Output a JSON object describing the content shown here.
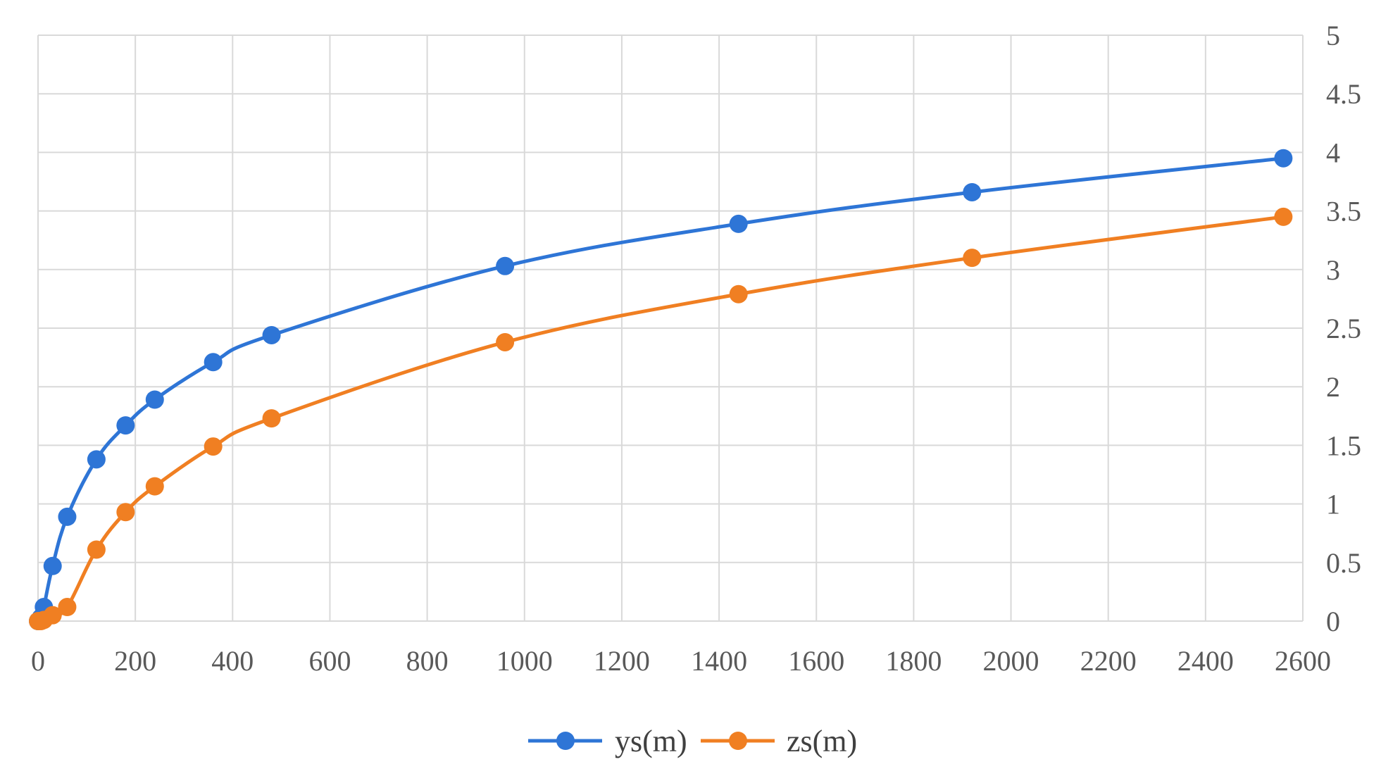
{
  "chart_data": {
    "type": "line",
    "title": "",
    "xlabel": "",
    "ylabel": "",
    "xlim": [
      0,
      2600
    ],
    "ylim": [
      0,
      5
    ],
    "x_ticks": [
      0,
      200,
      400,
      600,
      800,
      1000,
      1200,
      1400,
      1600,
      1800,
      2000,
      2200,
      2400,
      2600
    ],
    "y_ticks": [
      0,
      0.5,
      1,
      1.5,
      2,
      2.5,
      3,
      3.5,
      4,
      4.5,
      5
    ],
    "x_tick_labels": [
      "0",
      "200",
      "400",
      "600",
      "800",
      "1000",
      "1200",
      "1400",
      "1600",
      "1800",
      "2000",
      "2200",
      "2400",
      "2600"
    ],
    "y_tick_labels": [
      "0",
      "0.5",
      "1",
      "1.5",
      "2",
      "2.5",
      "3",
      "3.5",
      "4",
      "4.5",
      "5"
    ],
    "y_axis_side": "right",
    "grid": true,
    "legend_position": "bottom-center",
    "series": [
      {
        "name": "ys(m)",
        "color": "#2E75D6",
        "points": [
          [
            0,
            0
          ],
          [
            6,
            0.03
          ],
          [
            12,
            0.12
          ],
          [
            30,
            0.47
          ],
          [
            60,
            0.89
          ],
          [
            120,
            1.38
          ],
          [
            180,
            1.67
          ],
          [
            240,
            1.89
          ],
          [
            360,
            2.21
          ],
          [
            480,
            2.44
          ],
          [
            960,
            3.03
          ],
          [
            1440,
            3.39
          ],
          [
            1920,
            3.66
          ],
          [
            2560,
            3.95
          ]
        ]
      },
      {
        "name": "zs(m)",
        "color": "#F07F22",
        "points": [
          [
            0,
            0
          ],
          [
            6,
            0
          ],
          [
            12,
            0.01
          ],
          [
            30,
            0.05
          ],
          [
            60,
            0.12
          ],
          [
            120,
            0.61
          ],
          [
            180,
            0.93
          ],
          [
            240,
            1.15
          ],
          [
            360,
            1.49
          ],
          [
            480,
            1.73
          ],
          [
            960,
            2.38
          ],
          [
            1440,
            2.79
          ],
          [
            1920,
            3.1
          ],
          [
            2560,
            3.45
          ]
        ]
      }
    ]
  }
}
